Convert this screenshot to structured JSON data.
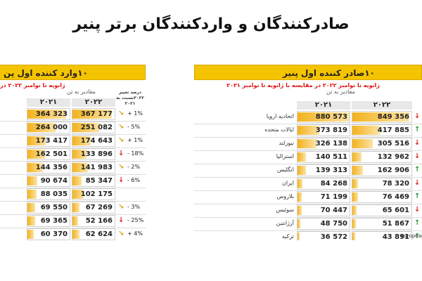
{
  "title": "صادرکنندگان و واردکنندگان برتر پنیر",
  "importers": {
    "title": "۱۰وارد کننده اول پن",
    "subtitle": "ژانویه تا نوامبر ۲۰۲۲ در",
    "unit": "مقادیر به تن",
    "change_header": "درصد تغییر ۲۰۲۲نسبت به ۲۰۲۱",
    "year_2022": "۲۰۲۲",
    "year_2021": "۲۰۲۱",
    "rows": [
      {
        "v2021": "364 323",
        "v2022": "367 177",
        "change": "+ 1%",
        "trend": "flat",
        "f2021": 0.92,
        "f2022": 0.93
      },
      {
        "v2021": "264 000",
        "v2022": "251 082",
        "change": "- 5%",
        "trend": "flat",
        "f2021": 0.67,
        "f2022": 0.64
      },
      {
        "v2021": "173 417",
        "v2022": "174 643",
        "change": "+ 1%",
        "trend": "flat",
        "f2021": 0.44,
        "f2022": 0.44
      },
      {
        "v2021": "162 501",
        "v2022": "133 896",
        "change": "- 18%",
        "trend": "down",
        "f2021": 0.41,
        "f2022": 0.34
      },
      {
        "v2021": "144 356",
        "v2022": "141 983",
        "change": "- 2%",
        "trend": "flat",
        "f2021": 0.37,
        "f2022": 0.36
      },
      {
        "v2021": "90 674",
        "v2022": "85 347",
        "change": "- 6%",
        "trend": "down",
        "f2021": 0.23,
        "f2022": 0.22
      },
      {
        "v2021": "88 035",
        "v2022": "102 175",
        "change": "",
        "trend": "",
        "f2021": 0.22,
        "f2022": 0.26
      },
      {
        "v2021": "69 550",
        "v2022": "67 269",
        "change": "- 3%",
        "trend": "flat",
        "f2021": 0.18,
        "f2022": 0.17
      },
      {
        "v2021": "69 365",
        "v2022": "52 166",
        "change": "- 25%",
        "trend": "down",
        "f2021": 0.18,
        "f2022": 0.13
      },
      {
        "v2021": "60 370",
        "v2022": "62 624",
        "change": "+ 4%",
        "trend": "flat",
        "f2021": 0.15,
        "f2022": 0.16
      }
    ]
  },
  "exporters": {
    "title": "۱۰صادر کننده اول پنیر",
    "subtitle": "ژانویه تا نوامبر ۲۰۲۲ در مقایسه با ژانویه تا نوامبر ۲۰۲۱",
    "unit": "مقادیر به تن",
    "year_2022": "۲۰۲۲",
    "year_2021": "۲۰۲۱",
    "source": "European",
    "rows": [
      {
        "country": "اتحادیه اروپا",
        "v2021": "880 573",
        "v2022": "849 356",
        "trend": "down",
        "f2021": 1.0,
        "f2022": 0.96
      },
      {
        "country": "ایالات متحده",
        "v2021": "373 819",
        "v2022": "417 885",
        "trend": "up",
        "f2021": 0.42,
        "f2022": 0.47
      },
      {
        "country": "نیوزلند",
        "v2021": "326 138",
        "v2022": "305 516",
        "trend": "down",
        "f2021": 0.37,
        "f2022": 0.35
      },
      {
        "country": "استرالیا",
        "v2021": "140 511",
        "v2022": "132 962",
        "trend": "down",
        "f2021": 0.16,
        "f2022": 0.15
      },
      {
        "country": "انگلیس",
        "v2021": "139 313",
        "v2022": "162 906",
        "trend": "up",
        "f2021": 0.16,
        "f2022": 0.18
      },
      {
        "country": "ایران",
        "v2021": "84 268",
        "v2022": "78 320",
        "trend": "down",
        "f2021": 0.1,
        "f2022": 0.09
      },
      {
        "country": "بلاروس",
        "v2021": "71 199",
        "v2022": "76 469",
        "trend": "up",
        "f2021": 0.08,
        "f2022": 0.09
      },
      {
        "country": "سوئیس",
        "v2021": "70 447",
        "v2022": "65 601",
        "trend": "down",
        "f2021": 0.08,
        "f2022": 0.07
      },
      {
        "country": "آرژانتین",
        "v2021": "48 750",
        "v2022": "51 867",
        "trend": "up",
        "f2021": 0.06,
        "f2022": 0.06
      },
      {
        "country": "ترکیه",
        "v2021": "36 572",
        "v2022": "43 891",
        "trend": "up",
        "f2021": 0.04,
        "f2022": 0.05
      }
    ]
  },
  "colors": {
    "bar": "#f3b21c",
    "header": "#f5c400",
    "up": "#2e9b3a",
    "down": "#d7261b",
    "flat": "#e2a020"
  }
}
